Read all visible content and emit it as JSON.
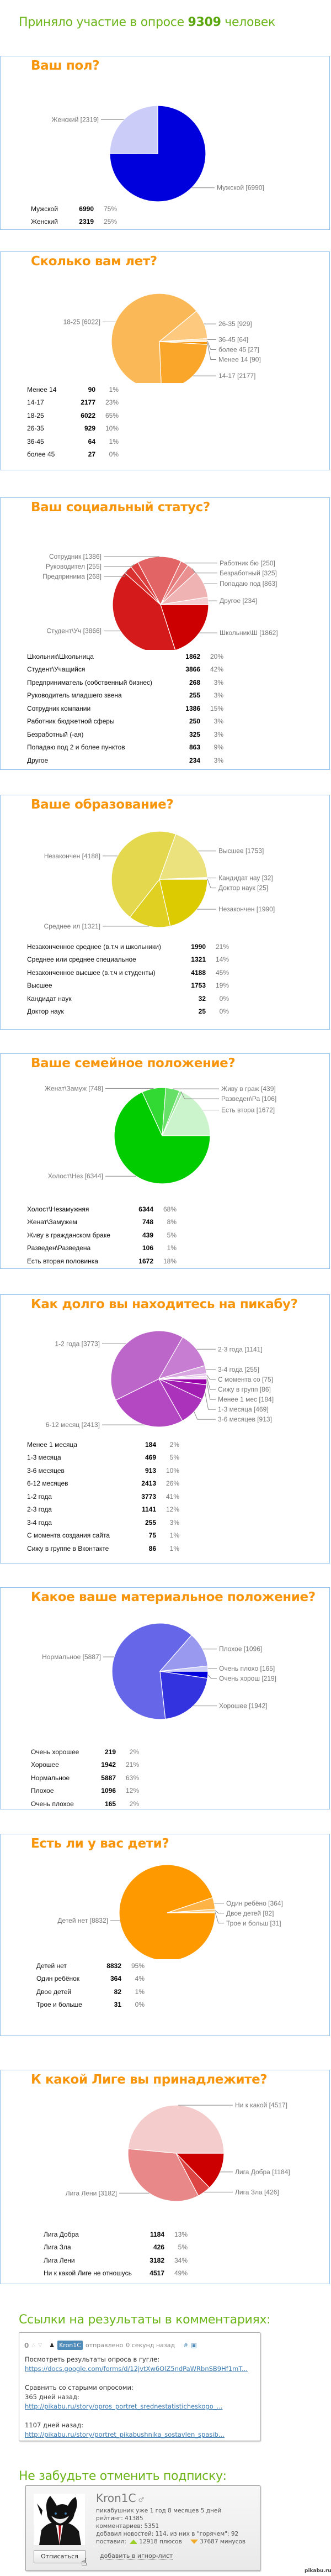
{
  "header": {
    "prefix": "Приняло участие в опросе",
    "count": "9309",
    "suffix": "человек"
  },
  "chart_data": [
    {
      "type": "pie",
      "title": "Ваш пол?",
      "categories": [
        "Мужской",
        "Женский"
      ],
      "values": [
        6990,
        2319
      ],
      "percents": [
        "75%",
        "25%"
      ],
      "slice_labels": [
        "Мужской [6990]",
        "Женский [2319]"
      ],
      "colors": [
        "#0000dd",
        "#ccccf8"
      ]
    },
    {
      "type": "pie",
      "title": "Сколько вам лет?",
      "categories": [
        "Менее 14",
        "14-17",
        "18-25",
        "26-35",
        "36-45",
        "более 45"
      ],
      "values": [
        90,
        2177,
        6022,
        929,
        64,
        27
      ],
      "percents": [
        "1%",
        "23%",
        "65%",
        "10%",
        "1%",
        "0%"
      ],
      "slice_labels": [
        "Менее 14 [90]",
        "14-17 [2177]",
        "18-25 [6022]",
        "26-35 [929]",
        "36-45 [64]",
        "более 45 [27]"
      ],
      "colors": [
        "#f79508",
        "#f9a62a",
        "#fbb856",
        "#fdc97e",
        "#fed9a6",
        "#fde8c8"
      ]
    },
    {
      "type": "pie",
      "title": "Ваш социальный статус?",
      "categories": [
        "Школьник\\Школьница",
        "Студент\\Учащийся",
        "Предприниматель (собственный бизнес)",
        "Руководитель младшего звена",
        "Сотрудник компании",
        "Работник бюджетной сферы",
        "Безработный (-ая)",
        "Попадаю под 2 и более пунктов",
        "Другое"
      ],
      "values": [
        1862,
        3866,
        268,
        255,
        1386,
        250,
        325,
        863,
        234
      ],
      "percents": [
        "20%",
        "42%",
        "3%",
        "3%",
        "15%",
        "3%",
        "3%",
        "9%",
        "3%"
      ],
      "slice_labels": [
        "Школьник\\Ш [1862]",
        "Студент\\Уч [3866]",
        "Предпринима [268]",
        "Руководител [255]",
        "Сотрудник  [1386]",
        "Работник бю [250]",
        "Безработный [325]",
        "Попадаю под [863]",
        "Другое [234]"
      ],
      "colors": [
        "#cc0000",
        "#d41a1a",
        "#d93030",
        "#dd4040",
        "#e26464",
        "#e67a7a",
        "#ea9090",
        "#f0b3b3",
        "#f6d0d0"
      ]
    },
    {
      "type": "pie",
      "title": "Ваше образование?",
      "categories": [
        "Незаконченное среднее (в.т.ч и школьники)",
        "Среднее или среднее специальное",
        "Незаконченное высшее (в.т.ч и студенты)",
        "Высшее",
        "Кандидат наук",
        "Доктор наук"
      ],
      "values": [
        1990,
        1321,
        4188,
        1753,
        32,
        25
      ],
      "percents": [
        "21%",
        "14%",
        "45%",
        "19%",
        "0%",
        "0%"
      ],
      "slice_labels": [
        "Незакончен [1990]",
        "Среднее ил [1321]",
        "Незакончен [4188]",
        "Высшее [1753]",
        "Кандидат нау [32]",
        "Доктор наук [25]"
      ],
      "colors": [
        "#dccb00",
        "#e0d022",
        "#e4d84e",
        "#ebe27e",
        "#f2ebaa",
        "#f7f2cc"
      ]
    },
    {
      "type": "pie",
      "title": "Ваше семейное положение?",
      "categories": [
        "Холост\\Незамужняя",
        "Женат\\Замужем",
        "Живу в гражданском браке",
        "Разведен\\Разведена",
        "Есть вторая половинка"
      ],
      "values": [
        6344,
        748,
        439,
        106,
        1672
      ],
      "percents": [
        "68%",
        "8%",
        "5%",
        "1%",
        "18%"
      ],
      "slice_labels": [
        "Холост\\Нез [6344]",
        "Женат\\Замуж [748]",
        "Живу в граж [439]",
        "Разведен\\Ра [106]",
        "Есть втора [1672]"
      ],
      "colors": [
        "#00cc00",
        "#33d933",
        "#66e066",
        "#99e899",
        "#ccf4cc"
      ]
    },
    {
      "type": "pie",
      "title": "Как долго вы находитесь на пикабу?",
      "categories": [
        "Менее 1 месяца",
        "1-3 месяца",
        "3-6 месяцев",
        "6-12 месяцев",
        "1-2 года",
        "2-3 года",
        "3-4 года",
        "С момента создания сайта",
        "Сижу в группе в Вконтакте"
      ],
      "values": [
        184,
        469,
        913,
        2413,
        3773,
        1141,
        255,
        75,
        86
      ],
      "percents": [
        "2%",
        "5%",
        "10%",
        "26%",
        "41%",
        "12%",
        "3%",
        "1%",
        "1%"
      ],
      "slice_labels": [
        "Менее 1 мес [184]",
        "1-3 месяца [469]",
        "3-6 месяцев [913]",
        "6-12 месяц [2413]",
        "1-2 года [3773]",
        "2-3 года [1141]",
        "3-4 года [255]",
        "С момента со [75]",
        "Сижу в групп [86]"
      ],
      "colors": [
        "#9900aa",
        "#a21eb3",
        "#ab33bb",
        "#b448c2",
        "#bd66ca",
        "#c77dd2",
        "#d8a6e0",
        "#e6c4ec",
        "#f0dcf4"
      ]
    },
    {
      "type": "pie",
      "title": "Какое ваше материальное положение?",
      "categories": [
        "Очень хорошее",
        "Хорошее",
        "Нормальное",
        "Плохое",
        "Очень плохое"
      ],
      "values": [
        219,
        1942,
        5887,
        1096,
        165
      ],
      "percents": [
        "2%",
        "21%",
        "63%",
        "12%",
        "2%"
      ],
      "slice_labels": [
        "Очень хорош [219]",
        "Хорошее [1942]",
        "Нормальное [5887]",
        "Плохое [1096]",
        "Очень плохо [165]"
      ],
      "colors": [
        "#0000dd",
        "#3333e0",
        "#6666e8",
        "#9999f0",
        "#ccccf8"
      ]
    },
    {
      "type": "pie",
      "title": "Есть ли у вас дети?",
      "categories": [
        "Детей нет",
        "Один ребёнок",
        "Двое детей",
        "Трое и больше"
      ],
      "values": [
        8832,
        364,
        82,
        31
      ],
      "percents": [
        "95%",
        "4%",
        "1%",
        "0%"
      ],
      "slice_labels": [
        "Детей нет [8832]",
        "Один ребёно [364]",
        "Двое детей [82]",
        "Трое и больш [31]"
      ],
      "colors": [
        "#fe9900",
        "#fdb346",
        "#fecb80",
        "#fee6c0"
      ]
    },
    {
      "type": "pie",
      "title": "К какой Лиге вы принадлежите?",
      "categories": [
        "Лига Добра",
        "Лига Зла",
        "Лига Лени",
        "Ни к какой Лиге не отношусь"
      ],
      "values": [
        1184,
        426,
        3182,
        4517
      ],
      "percents": [
        "13%",
        "5%",
        "34%",
        "49%"
      ],
      "slice_labels": [
        "Лига Добра [1184]",
        "Лига Зла [426]",
        "Лига Лени [3182]",
        "Ни к какой [4517]"
      ],
      "colors": [
        "#cc0000",
        "#dd4444",
        "#e88888",
        "#f5cccc"
      ]
    }
  ],
  "links_section": {
    "heading": "Ссылки на результаты в комментариях:",
    "comment": {
      "score": "0",
      "username": "Kron1C",
      "sent_label": "отправлено",
      "time": "0 секунд назад",
      "hash": "#",
      "lines": {
        "l1": "Посмотреть результаты опроса в гугле:",
        "link1": "https://docs.google.com/forms/d/12jvtXw6OlZ5ndPaWRbnSB9Hf1mT...",
        "l2": "Сравнить со старыми опросоми:",
        "l3": "365 дней назад:",
        "link2": "http://pikabu.ru/story/opros_portret_srednestatisticheskogo_...",
        "l4": "1107 дней назад:",
        "link3": "http://pikabu.ru/story/portret_pikabushnika_sostavlen_spasib..."
      }
    }
  },
  "unsubscribe_section": {
    "heading": "Не забудьте отменить подписку:",
    "profile": {
      "name": "Kron1C",
      "sex_icon": "male-symbol",
      "tenure": "пикабушник уже 1 год 8 месяцев 5 дней",
      "rating": "рейтинг: 41385",
      "comments": "комментариев: 5351",
      "news": "добавил новостей: 114, из них в \"горячем\": 92",
      "voted_label": "поставил:",
      "plus": "12918 плюсов",
      "minus": "37687 минусов",
      "unsubscribe_button": "Отписаться",
      "ignore_link": "добавить в игнор-лист"
    }
  },
  "watermark": "pikabu.ru"
}
